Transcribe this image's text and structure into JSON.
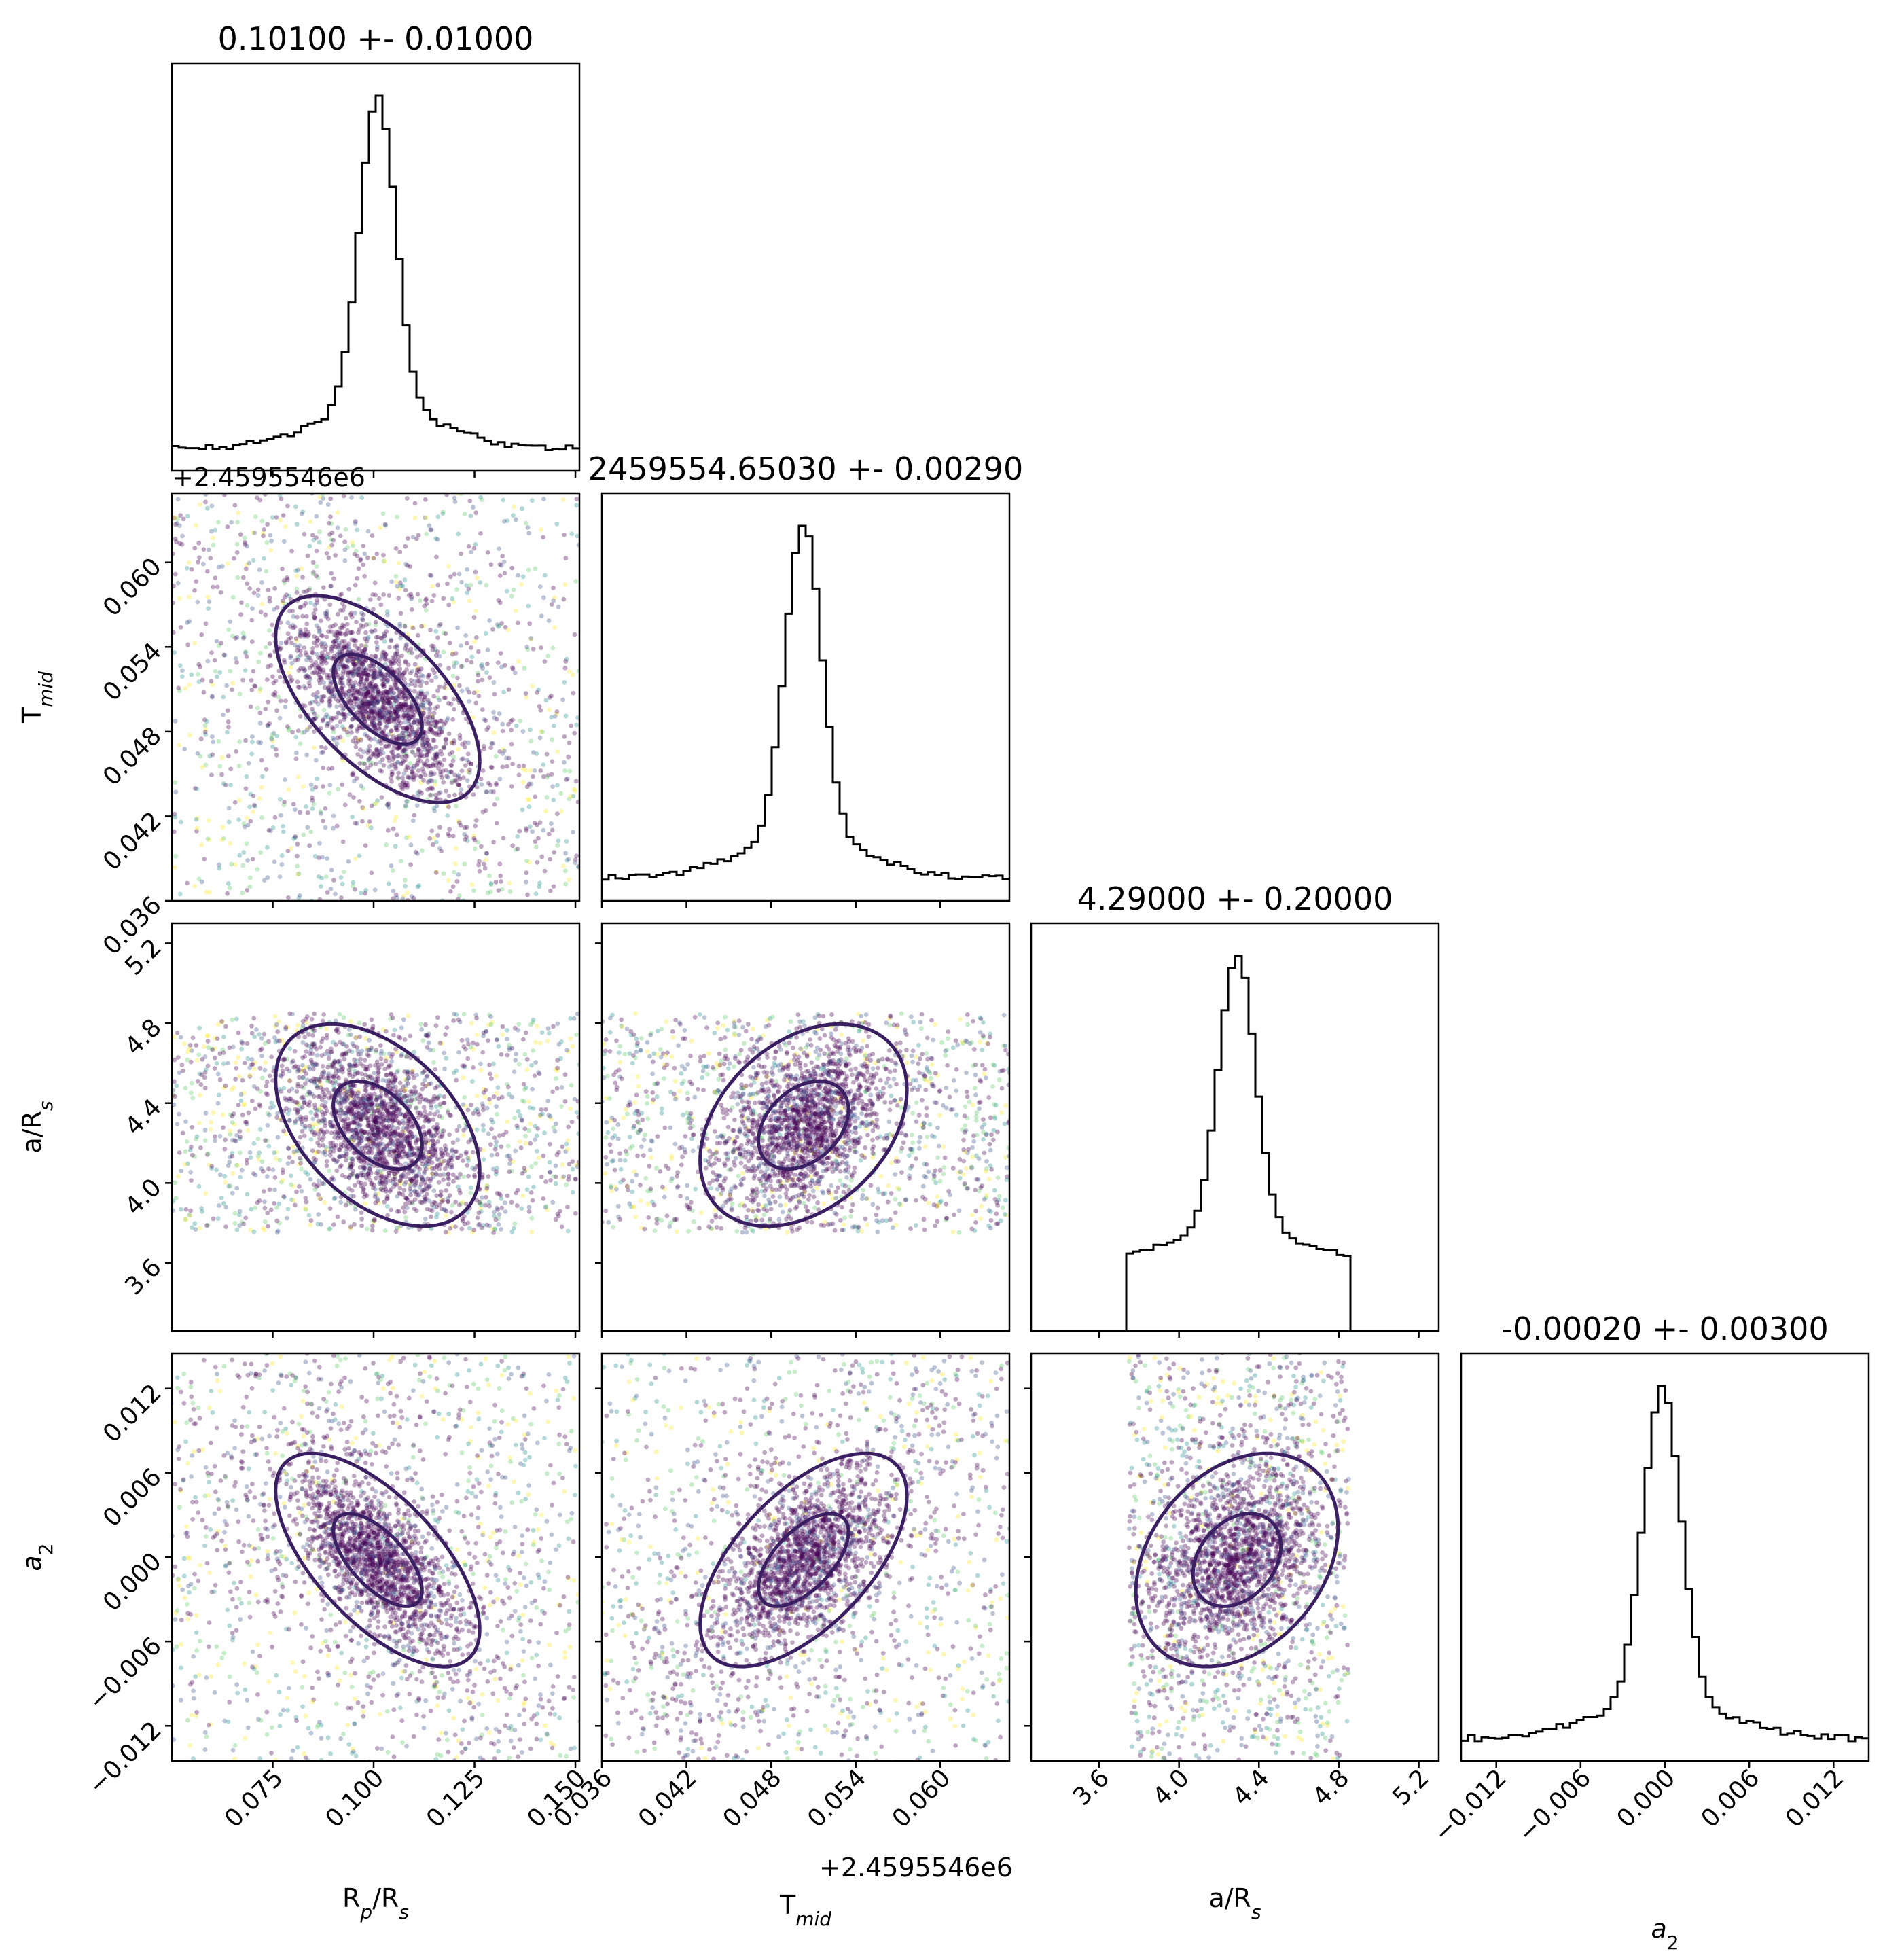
{
  "chart_data": {
    "type": "scatter",
    "description_type": "corner-plot",
    "parameters": [
      {
        "key": "rprs",
        "label": "R_p/R_s",
        "tick_labels": [
          "0.075",
          "0.100",
          "0.125",
          "0.150"
        ],
        "range": [
          0.05,
          0.151
        ],
        "center": 0.101,
        "sigma": 0.01
      },
      {
        "key": "tmid",
        "label": "T_mid",
        "offset_label": "+2.4595546e6",
        "tick_labels": [
          "0.036",
          "0.042",
          "0.048",
          "0.054",
          "0.060"
        ],
        "range": [
          0.036,
          0.0649
        ],
        "center": 0.0503,
        "sigma": 0.0029
      },
      {
        "key": "ars",
        "label": "a/R_s",
        "tick_labels": [
          "3.6",
          "4.0",
          "4.4",
          "4.8",
          "5.2"
        ],
        "range": [
          3.26,
          5.3
        ],
        "center": 4.29,
        "sigma": 0.2
      },
      {
        "key": "a2",
        "label": "a_2",
        "tick_labels": [
          "−0.012",
          "−0.006",
          "0.000",
          "0.006",
          "0.012"
        ],
        "range": [
          -0.0145,
          0.0145
        ],
        "center": -0.0002,
        "sigma": 0.003
      }
    ],
    "titles": [
      "0.10100 +- 0.01000",
      "2459554.65030 +- 0.00290",
      "4.29000 +- 0.20000",
      "-0.00020 +- 0.00300"
    ],
    "axis_labels": {
      "rprs": "R",
      "rprs_sub": "p",
      "rprs_tail": "/R",
      "rprs_sub2": "s",
      "tmid": "T",
      "tmid_sub": "mid",
      "ars": "a/R",
      "ars_sub": "s",
      "a2": "a",
      "a2_sub": "2"
    },
    "offset_labels": {
      "tmid_y": "+2.4595546e6",
      "tmid_x": "+2.4595546e6"
    },
    "histograms": {
      "rprs": {
        "peak_value": 0.101,
        "shape": "narrow peak with flat wings"
      },
      "tmid": {
        "peak_value": 0.0503,
        "shape": "narrow peak with flat wings"
      },
      "ars": {
        "peak_value": 4.29,
        "support": [
          3.75,
          4.85
        ],
        "shape": "peak on a bounded plateau"
      },
      "a2": {
        "peak_value": -0.0002,
        "shape": "narrow peak with flat wings"
      }
    },
    "correlations": {
      "tmid_vs_rprs": -0.6,
      "ars_vs_rprs": -0.45,
      "ars_vs_tmid": 0.35,
      "a2_vs_rprs": -0.65,
      "a2_vs_tmid": 0.6,
      "a2_vs_ars": 0.3
    },
    "ars_prior_bounds": [
      3.75,
      4.85
    ],
    "colormap": [
      "#440154",
      "#3b528b",
      "#21908d",
      "#5dc963",
      "#fde725"
    ],
    "contour_color": "#3b1f63",
    "histogram_color": "#000000",
    "grid": false,
    "legend": "none"
  }
}
